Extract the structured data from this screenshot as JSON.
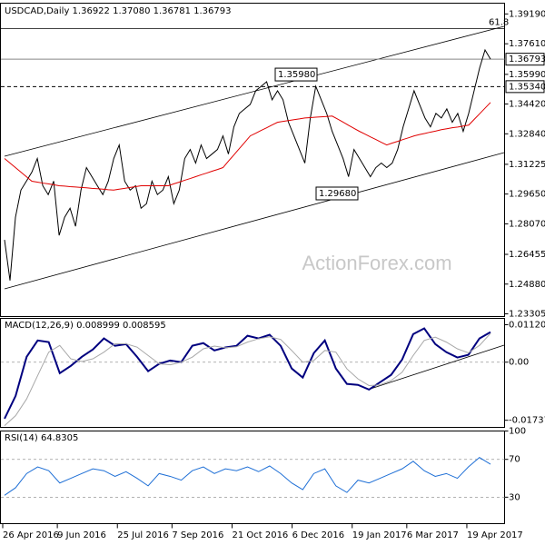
{
  "chart_data": [
    {
      "type": "line",
      "title": "USDCAD,Daily 1.36922 1.37080 1.36781 1.36793",
      "categories": [
        "26 Apr 2016",
        null,
        null,
        null,
        null,
        null,
        null,
        null,
        null,
        null,
        "9 Jun 2016",
        null,
        null,
        null,
        null,
        null,
        null,
        null,
        null,
        null,
        null,
        "25 Jul 2016",
        null,
        null,
        null,
        null,
        null,
        null,
        null,
        null,
        null,
        "7 Sep 2016",
        null,
        null,
        null,
        null,
        null,
        null,
        null,
        null,
        null,
        null,
        "21 Oct 2016",
        null,
        null,
        null,
        null,
        null,
        null,
        null,
        null,
        null,
        null,
        "6 Dec 2016",
        null,
        null,
        null,
        null,
        null,
        null,
        null,
        null,
        null,
        null,
        "19 Jan 2017",
        null,
        null,
        null,
        null,
        null,
        null,
        null,
        null,
        null,
        "6 Mar 2017",
        null,
        null,
        null,
        null,
        null,
        null,
        null,
        null,
        null,
        null,
        "19 Apr 2017",
        null,
        null,
        null,
        null
      ],
      "series": [
        {
          "color": "#000000",
          "values": [
            1.2722,
            1.2507,
            1.2842,
            1.2986,
            1.3033,
            1.3081,
            1.3153,
            1.3009,
            1.2962,
            1.3033,
            1.2746,
            1.2842,
            1.289,
            1.2794,
            1.2986,
            1.3105,
            1.3057,
            1.3009,
            1.2962,
            1.3033,
            1.3153,
            1.3225,
            1.3033,
            1.2986,
            1.3009,
            1.289,
            1.2914,
            1.3033,
            1.2962,
            1.2986,
            1.3057,
            1.2914,
            1.2986,
            1.3153,
            1.3201,
            1.3129,
            1.3225,
            1.3153,
            1.3177,
            1.3201,
            1.3273,
            1.3177,
            1.3321,
            1.3392,
            1.3416,
            1.344,
            1.3512,
            1.3536,
            1.356,
            1.3464,
            1.3512,
            1.3464,
            1.3345,
            1.3273,
            1.3201,
            1.3129,
            1.3368,
            1.3536,
            1.3464,
            1.3392,
            1.3297,
            1.3225,
            1.3153,
            1.3057,
            1.3201,
            1.3153,
            1.3105,
            1.3057,
            1.3105,
            1.3129,
            1.3105,
            1.3129,
            1.3201,
            1.3321,
            1.3416,
            1.3512,
            1.344,
            1.3368,
            1.3321,
            1.3392,
            1.3368,
            1.3416,
            1.3345,
            1.3392,
            1.3297,
            1.3392,
            1.3512,
            1.3632,
            1.3728,
            1.36793
          ]
        },
        {
          "color": "#e00000",
          "values": [
            1.3153,
            1.3129,
            1.3105,
            1.3081,
            1.3057,
            1.3033,
            1.3028,
            1.3023,
            1.3019,
            1.3014,
            1.3009,
            1.3007,
            1.3004,
            1.3002,
            1.3,
            1.2998,
            1.2995,
            1.2993,
            1.2991,
            1.2988,
            1.2986,
            1.2991,
            1.2995,
            1.3,
            1.3004,
            1.3009,
            1.3009,
            1.3009,
            1.3009,
            1.3009,
            1.3009,
            1.3019,
            1.3028,
            1.3038,
            1.3047,
            1.3057,
            1.3067,
            1.3076,
            1.3086,
            1.3095,
            1.3105,
            1.3139,
            1.3172,
            1.3206,
            1.3239,
            1.3273,
            1.3287,
            1.3302,
            1.3316,
            1.3331,
            1.3345,
            1.335,
            1.3354,
            1.3359,
            1.3363,
            1.3368,
            1.337,
            1.3372,
            1.3374,
            1.3376,
            1.3378,
            1.3362,
            1.3346,
            1.3329,
            1.3313,
            1.3297,
            1.3283,
            1.3268,
            1.3254,
            1.3239,
            1.3225,
            1.3235,
            1.3244,
            1.3254,
            1.3263,
            1.3273,
            1.328,
            1.3286,
            1.3293,
            1.3299,
            1.3306,
            1.3311,
            1.3316,
            1.332,
            1.3325,
            1.333,
            1.336,
            1.339,
            1.342,
            1.345
          ]
        }
      ],
      "ylim": [
        1.2316,
        1.3976
      ],
      "yticks": [
        {
          "value": 1.3919,
          "label": "1.39190"
        },
        {
          "value": 1.3761,
          "label": "1.37610"
        },
        {
          "value": 1.3599,
          "label": "1.35990"
        },
        {
          "value": 1.3442,
          "label": "1.34420"
        },
        {
          "value": 1.3284,
          "label": "1.32840"
        },
        {
          "value": 1.31225,
          "label": "1.31225"
        },
        {
          "value": 1.2965,
          "label": "1.29650"
        },
        {
          "value": 1.2807,
          "label": "1.28070"
        },
        {
          "value": 1.26455,
          "label": "1.26455"
        },
        {
          "value": 1.2488,
          "label": "1.24880"
        },
        {
          "value": 1.23305,
          "label": "1.23305"
        }
      ],
      "last_price": {
        "value": 1.36793,
        "label": "1.36793"
      },
      "level": {
        "value": 1.3534,
        "label": "1.35340"
      },
      "fib": {
        "label": "61.8",
        "price": 1.3842
      },
      "annotations": [
        {
          "value": 1.3598,
          "label": "1.35980"
        },
        {
          "value": 1.2968,
          "label": "1.29680"
        }
      ],
      "watermark": "ActionForex.com"
    },
    {
      "type": "line",
      "title": "MACD(12,26,9) 0.008999 0.008595",
      "series": [
        {
          "color": "#00007f",
          "values": [
            -0.0169,
            -0.0101,
            0.0016,
            0.0065,
            0.006,
            -0.0033,
            -0.0011,
            0.0016,
            0.0038,
            0.0071,
            0.0049,
            0.0054,
            0.0016,
            -0.0027,
            -0.0005,
            0.0005,
            0,
            0.0049,
            0.0057,
            0.0035,
            0.0044,
            0.0049,
            0.0079,
            0.0071,
            0.0082,
            0.0049,
            -0.0019,
            -0.0046,
            0.0027,
            0.0065,
            -0.0019,
            -0.0065,
            -0.0068,
            -0.0082,
            -0.006,
            -0.0038,
            0.0008,
            0.0084,
            0.0101,
            0.0054,
            0.003,
            0.0014,
            0.0022,
            0.0071,
            0.008999
          ]
        },
        {
          "color": "#a8a8a8",
          "values": [
            -0.019,
            -0.016,
            -0.011,
            -0.004,
            0.003,
            0.005,
            0.001,
            0.0002,
            0.001,
            0.003,
            0.0055,
            0.0055,
            0.0045,
            0.002,
            -0.0005,
            -0.0008,
            0,
            0.0015,
            0.004,
            0.0048,
            0.0043,
            0.0046,
            0.006,
            0.007,
            0.0076,
            0.0068,
            0.0035,
            0,
            0.0005,
            0.0035,
            0.003,
            -0.002,
            -0.005,
            -0.007,
            -0.0068,
            -0.0055,
            -0.003,
            0.002,
            0.0065,
            0.0075,
            0.006,
            0.004,
            0.0028,
            0.005,
            0.008595
          ]
        }
      ],
      "ylim": [
        -0.0195,
        0.0131
      ],
      "yticks": [
        0.011204,
        {
          "value": 0,
          "label": "0.00"
        },
        -0.017371
      ],
      "levels": [
        0
      ]
    },
    {
      "type": "line",
      "title": "RSI(14) 64.8305",
      "series": [
        {
          "color": "#1e6fd6",
          "values": [
            32,
            40,
            55,
            62,
            58,
            45,
            50,
            55,
            60,
            58,
            52,
            57,
            50,
            42,
            55,
            52,
            48,
            58,
            62,
            55,
            60,
            58,
            62,
            57,
            63,
            55,
            45,
            38,
            55,
            60,
            42,
            35,
            48,
            45,
            50,
            55,
            60,
            68,
            58,
            52,
            55,
            50,
            62,
            72,
            64.8305
          ]
        }
      ],
      "ylim": [
        2,
        100
      ],
      "yticks": [
        100,
        70,
        30
      ],
      "levels": [
        70,
        30
      ]
    }
  ]
}
